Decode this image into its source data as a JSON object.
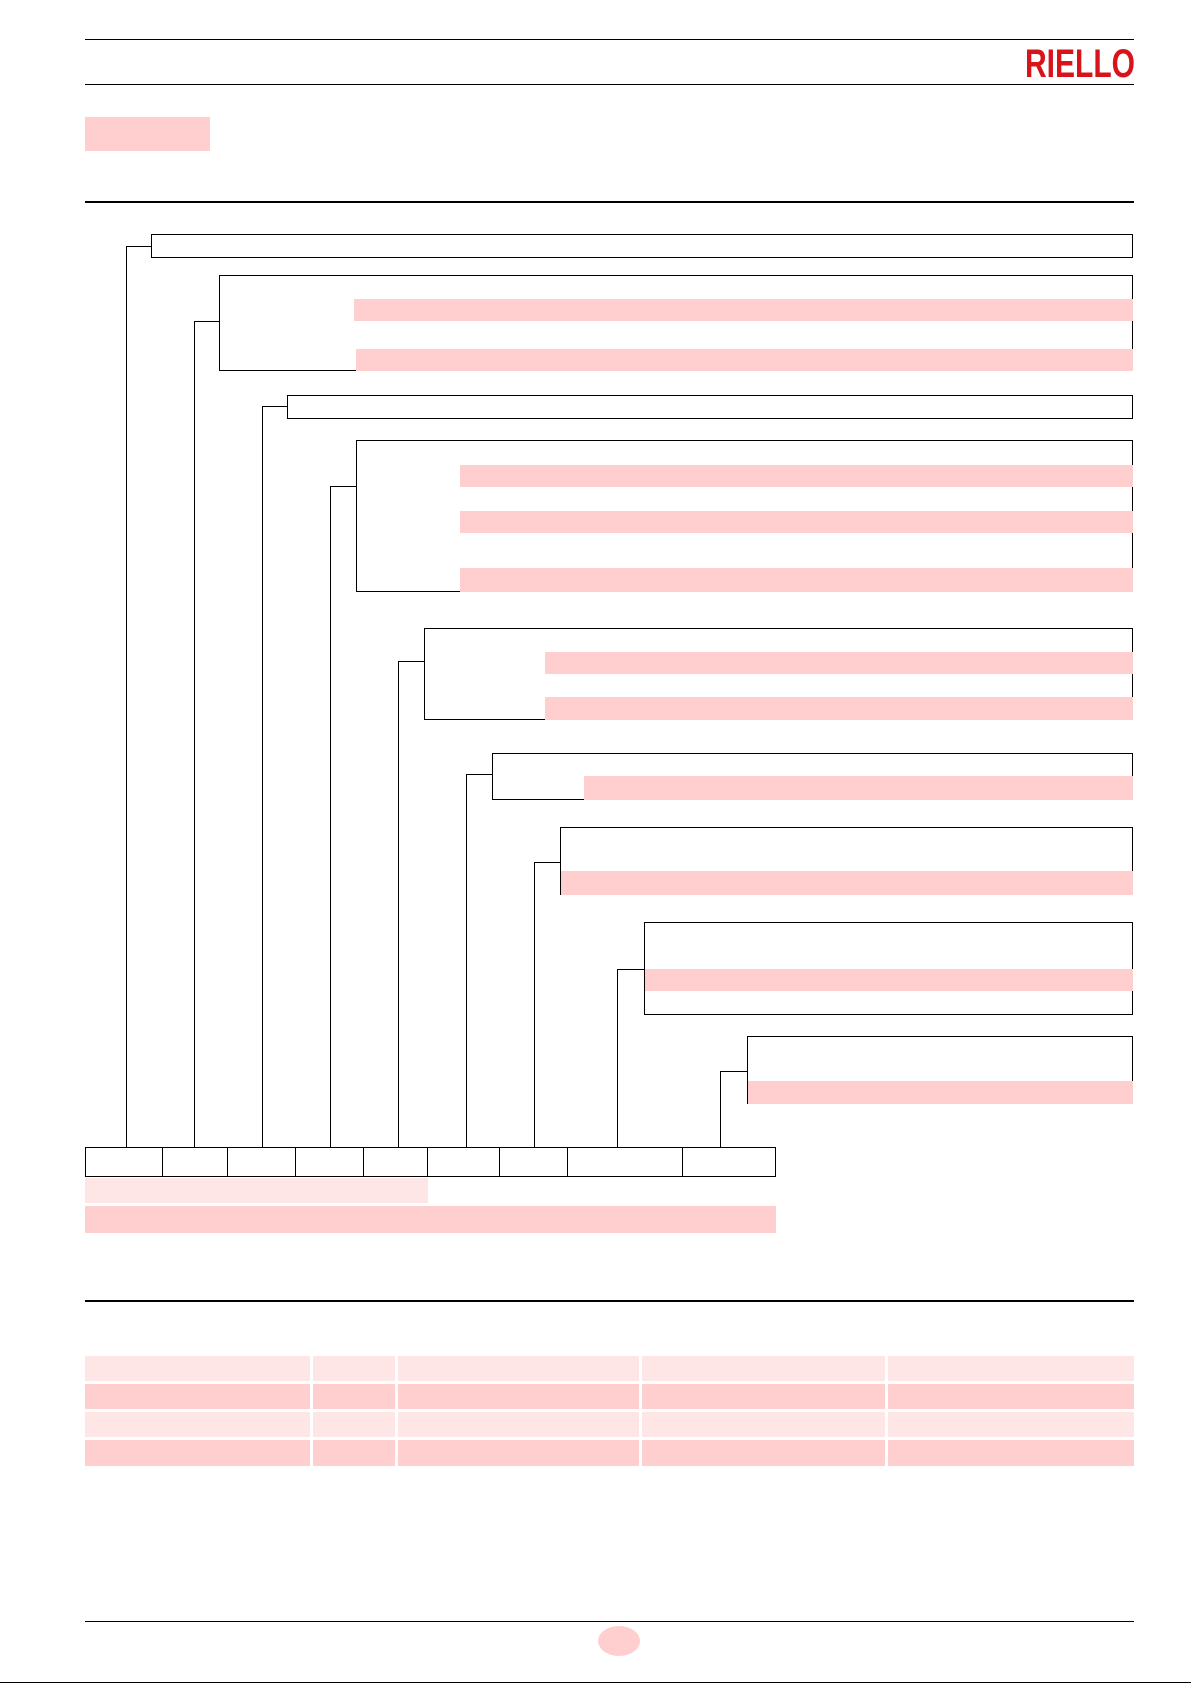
{
  "header": {
    "brand": "RIELLO",
    "brand_color": "#d8141b",
    "section_label": ""
  },
  "designation": {
    "boxes": [
      {
        "title": "",
        "rows": []
      },
      {
        "title": "",
        "rows": [
          "",
          ""
        ]
      },
      {
        "title": "",
        "rows": []
      },
      {
        "title": "",
        "rows": [
          "",
          "",
          ""
        ]
      },
      {
        "title": "",
        "rows": [
          "",
          ""
        ]
      },
      {
        "title": "",
        "rows": [
          ""
        ]
      },
      {
        "title": "",
        "rows": [
          ""
        ]
      },
      {
        "title": "",
        "rows": [
          ""
        ]
      },
      {
        "title": "",
        "rows": [
          ""
        ]
      }
    ],
    "code_segments": [
      "",
      "",
      "",
      "",
      "",
      "",
      "",
      "",
      ""
    ],
    "example_label": "",
    "example_value": ""
  },
  "models_table": {
    "headers": [
      "",
      "",
      "",
      "",
      ""
    ],
    "rows": [
      [
        "",
        "",
        "",
        "",
        ""
      ],
      [
        "",
        "",
        "",
        "",
        ""
      ],
      [
        "",
        "",
        "",
        "",
        ""
      ]
    ]
  },
  "footer": {
    "page_number": ""
  }
}
